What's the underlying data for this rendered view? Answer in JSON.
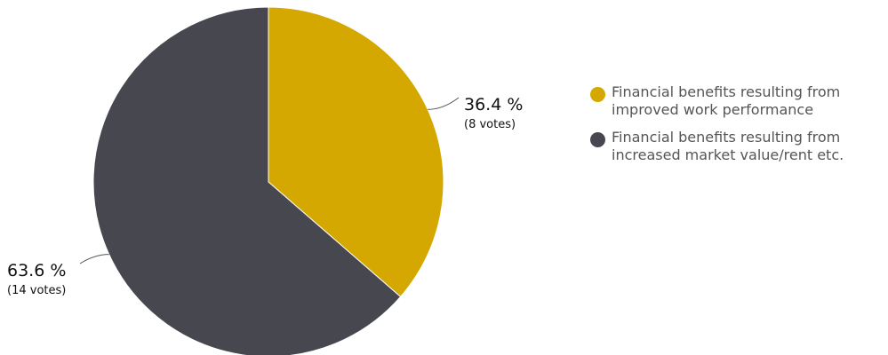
{
  "chart_data": {
    "type": "pie",
    "categories": [
      "Financial benefits resulting from improved work performance",
      "Financial benefits resulting from increased market value/rent etc."
    ],
    "values": [
      36.4,
      63.6
    ],
    "votes": [
      8,
      14
    ],
    "value_labels": [
      "36.4 %",
      "63.6 %"
    ],
    "vote_labels": [
      "(8 votes)",
      "(14 votes)"
    ],
    "colors": [
      "#d4a800",
      "#474750"
    ],
    "legend_position": "right"
  },
  "legend": {
    "items": [
      {
        "label": "Financial benefits resulting from\nimproved work performance",
        "color": "#d4a800"
      },
      {
        "label": "Financial benefits resulting from\nincreased market value/rent etc.",
        "color": "#474750"
      }
    ]
  }
}
